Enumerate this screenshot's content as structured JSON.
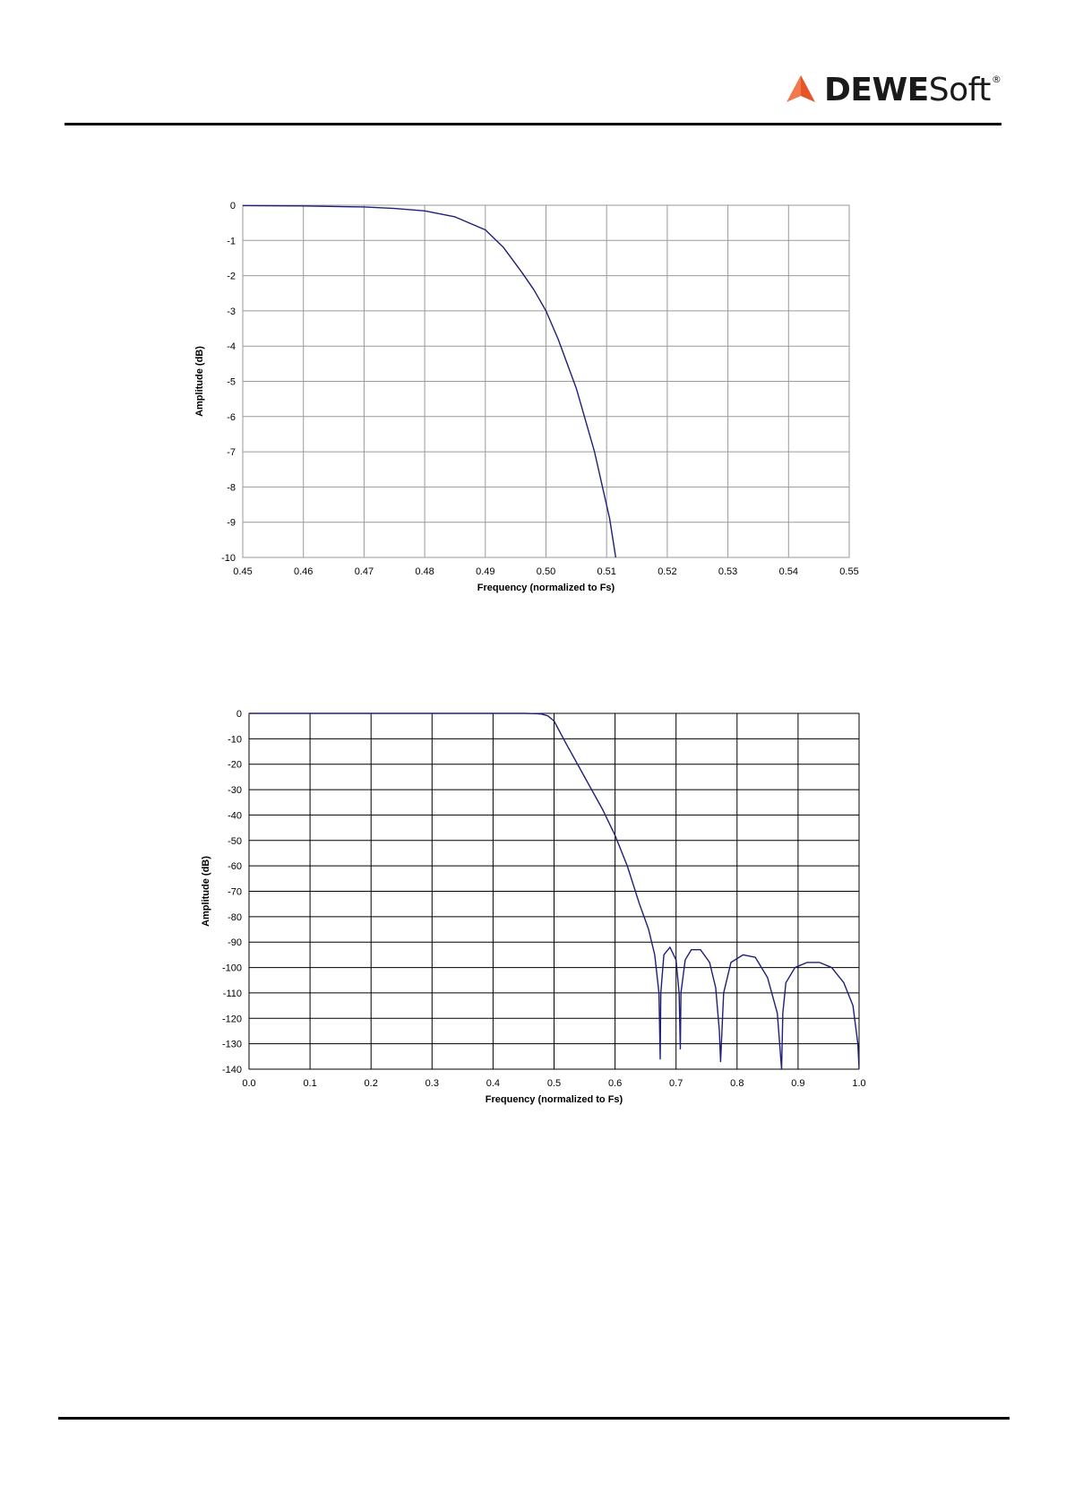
{
  "logo": {
    "brand_bold": "DEWE",
    "brand_light": "Soft",
    "trademark": "®",
    "accent_color": "#e8542a"
  },
  "chart_data": [
    {
      "type": "line",
      "xlabel": "Frequency (normalized to Fs)",
      "ylabel": "Amplitude (dB)",
      "xlim": [
        0.45,
        0.55
      ],
      "ylim": [
        -10,
        0
      ],
      "xticks": [
        "0.45",
        "0.46",
        "0.47",
        "0.48",
        "0.49",
        "0.50",
        "0.51",
        "0.52",
        "0.53",
        "0.54",
        "0.55"
      ],
      "yticks": [
        "0",
        "-1",
        "-2",
        "-3",
        "-4",
        "-5",
        "-6",
        "-7",
        "-8",
        "-9",
        "-10"
      ],
      "grid": true,
      "line_color": "#1f1f7a",
      "series": [
        {
          "x": [
            0.45,
            0.46,
            0.47,
            0.475,
            0.48,
            0.485,
            0.49,
            0.493,
            0.496,
            0.498,
            0.5,
            0.502,
            0.505,
            0.508,
            0.5105,
            0.5115
          ],
          "y": [
            -0.01,
            -0.02,
            -0.05,
            -0.09,
            -0.16,
            -0.33,
            -0.7,
            -1.2,
            -1.9,
            -2.4,
            -3.0,
            -3.8,
            -5.2,
            -7.0,
            -8.9,
            -10.0
          ]
        }
      ]
    },
    {
      "type": "line",
      "xlabel": "Frequency (normalized to Fs)",
      "ylabel": "Amplitude (dB)",
      "xlim": [
        0.0,
        1.0
      ],
      "ylim": [
        -140,
        0
      ],
      "xticks": [
        "0.0",
        "0.1",
        "0.2",
        "0.3",
        "0.4",
        "0.5",
        "0.6",
        "0.7",
        "0.8",
        "0.9",
        "1.0"
      ],
      "yticks": [
        "0",
        "-10",
        "-20",
        "-30",
        "-40",
        "-50",
        "-60",
        "-70",
        "-80",
        "-90",
        "-100",
        "-110",
        "-120",
        "-130",
        "-140"
      ],
      "grid": true,
      "line_color": "#1f1f7a",
      "series": [
        {
          "x": [
            0.0,
            0.1,
            0.2,
            0.3,
            0.4,
            0.45,
            0.47,
            0.48,
            0.49,
            0.5,
            0.52,
            0.55,
            0.58,
            0.6,
            0.62,
            0.64,
            0.655,
            0.665,
            0.672,
            0.674,
            0.675,
            0.68,
            0.69,
            0.7,
            0.705,
            0.707,
            0.708,
            0.715,
            0.725,
            0.74,
            0.755,
            0.765,
            0.771,
            0.773,
            0.778,
            0.79,
            0.81,
            0.83,
            0.85,
            0.866,
            0.873,
            0.875,
            0.88,
            0.895,
            0.915,
            0.935,
            0.955,
            0.975,
            0.99,
            0.998,
            1.0
          ],
          "y": [
            0,
            0,
            0,
            0,
            0,
            0,
            -0.1,
            -0.3,
            -1.0,
            -3,
            -12,
            -25,
            -38,
            -48,
            -60,
            -75,
            -85,
            -95,
            -110,
            -136,
            -110,
            -95,
            -92,
            -97,
            -110,
            -132,
            -110,
            -97,
            -93,
            -93,
            -98,
            -108,
            -125,
            -137,
            -110,
            -98,
            -95,
            -96,
            -104,
            -118,
            -140,
            -118,
            -106,
            -100,
            -98,
            -98,
            -100,
            -106,
            -115,
            -130,
            -140
          ]
        }
      ]
    }
  ]
}
